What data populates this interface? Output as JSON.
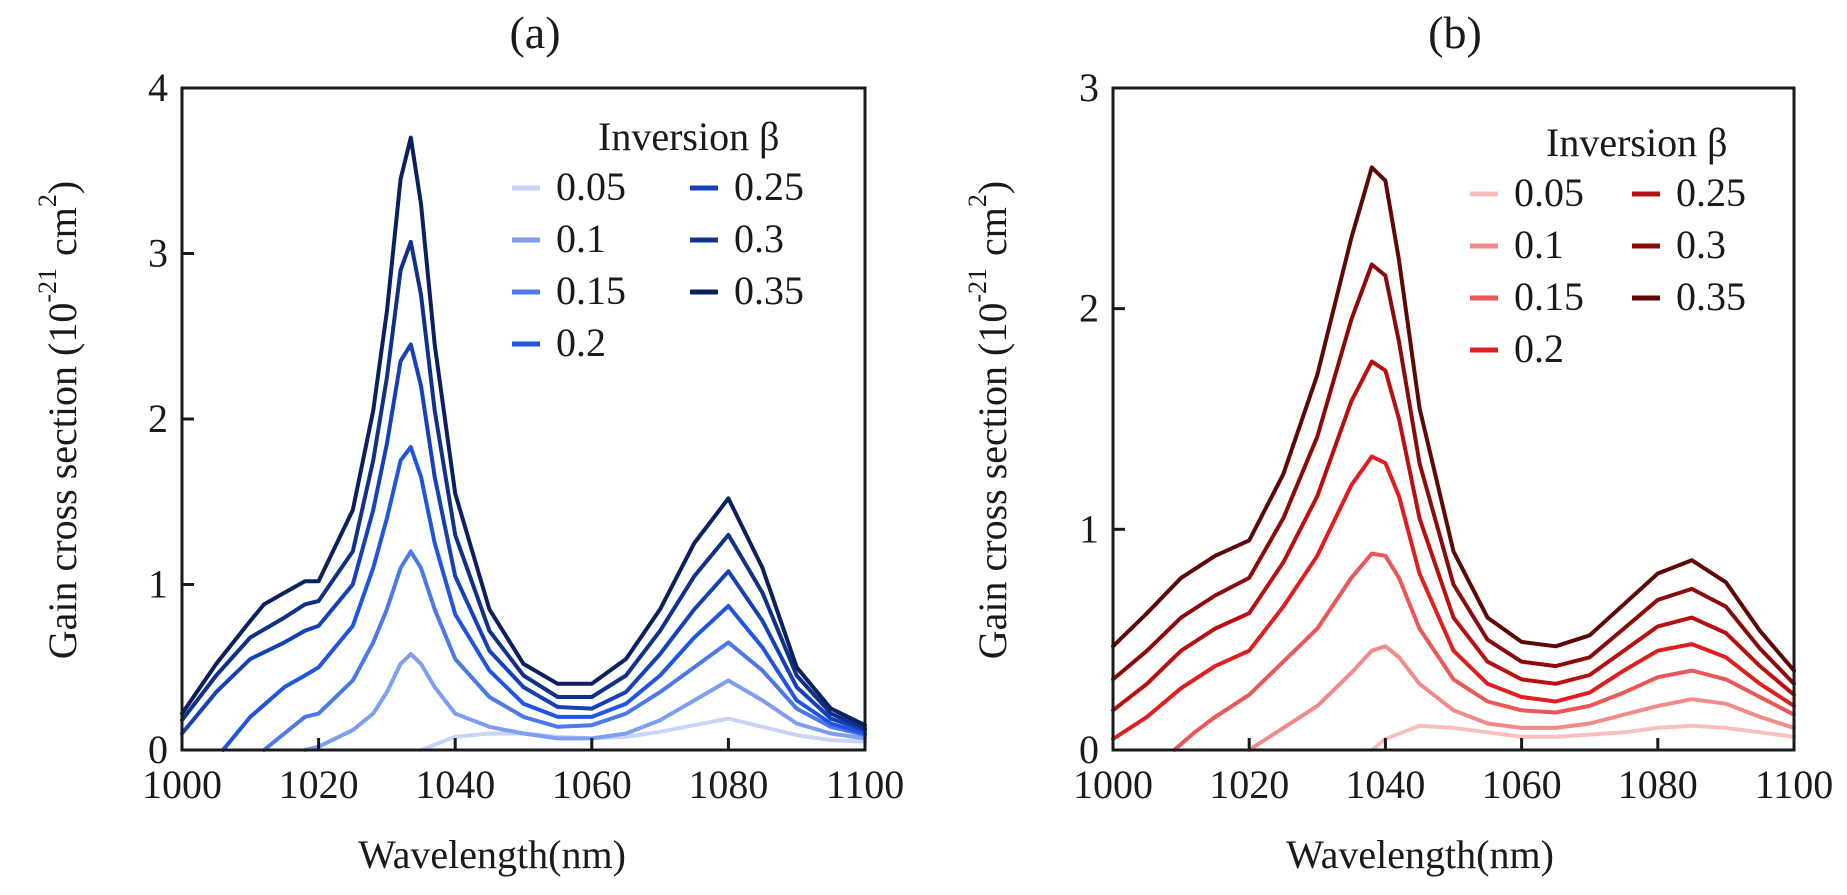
{
  "chart_data": [
    {
      "type": "line",
      "title": "(a)",
      "xlabel": "Wavelength(nm)",
      "ylabel": "Gain cross section (10",
      "ylabel_exp": "-21",
      "ylabel_unit": "cm",
      "ylabel_unit_exp": "2",
      "ylabel_close": ")",
      "xlim": [
        1000,
        1100
      ],
      "ylim": [
        0,
        4
      ],
      "xticks": [
        "1000",
        "1020",
        "1040",
        "1060",
        "1080",
        "1100"
      ],
      "yticks": [
        "0",
        "1",
        "2",
        "3",
        "4"
      ],
      "legend_title": "Inversion β",
      "legend_position": "top-right",
      "series": [
        {
          "name": "0.05",
          "color": "#c7d4f7",
          "x": [
            1035,
            1040,
            1045,
            1050,
            1055,
            1060,
            1065,
            1070,
            1075,
            1080,
            1085,
            1090,
            1095,
            1100
          ],
          "values": [
            0.0,
            0.08,
            0.1,
            0.1,
            0.08,
            0.07,
            0.08,
            0.11,
            0.15,
            0.19,
            0.14,
            0.09,
            0.06,
            0.05
          ]
        },
        {
          "name": "0.1",
          "color": "#7f9ef0",
          "x": [
            1018,
            1020,
            1025,
            1028,
            1030,
            1032,
            1033.5,
            1035,
            1037,
            1040,
            1045,
            1050,
            1055,
            1060,
            1065,
            1070,
            1075,
            1080,
            1085,
            1090,
            1095,
            1100
          ],
          "values": [
            0.0,
            0.02,
            0.12,
            0.22,
            0.35,
            0.52,
            0.58,
            0.52,
            0.38,
            0.22,
            0.14,
            0.1,
            0.07,
            0.07,
            0.1,
            0.18,
            0.3,
            0.42,
            0.3,
            0.16,
            0.1,
            0.07
          ]
        },
        {
          "name": "0.15",
          "color": "#4c78ea",
          "x": [
            1012,
            1015,
            1018,
            1020,
            1025,
            1028,
            1030,
            1032,
            1033.5,
            1035,
            1037,
            1040,
            1045,
            1050,
            1055,
            1060,
            1065,
            1070,
            1075,
            1080,
            1085,
            1090,
            1095,
            1100
          ],
          "values": [
            0.0,
            0.1,
            0.2,
            0.22,
            0.42,
            0.65,
            0.85,
            1.1,
            1.2,
            1.1,
            0.85,
            0.55,
            0.32,
            0.2,
            0.14,
            0.15,
            0.22,
            0.35,
            0.5,
            0.65,
            0.48,
            0.25,
            0.14,
            0.09
          ]
        },
        {
          "name": "0.2",
          "color": "#1f55e0",
          "x": [
            1006,
            1010,
            1015,
            1018,
            1020,
            1025,
            1028,
            1030,
            1032,
            1033.5,
            1035,
            1037,
            1040,
            1045,
            1050,
            1055,
            1060,
            1065,
            1070,
            1075,
            1080,
            1085,
            1090,
            1095,
            1100
          ],
          "values": [
            0.0,
            0.2,
            0.38,
            0.45,
            0.5,
            0.75,
            1.1,
            1.4,
            1.75,
            1.83,
            1.65,
            1.25,
            0.82,
            0.48,
            0.28,
            0.2,
            0.2,
            0.28,
            0.45,
            0.68,
            0.87,
            0.62,
            0.3,
            0.16,
            0.1
          ]
        },
        {
          "name": "0.25",
          "color": "#1540b8",
          "x": [
            1000,
            1005,
            1010,
            1015,
            1018,
            1020,
            1025,
            1028,
            1030,
            1032,
            1033.5,
            1035,
            1037,
            1040,
            1045,
            1050,
            1055,
            1060,
            1065,
            1070,
            1075,
            1080,
            1085,
            1090,
            1095,
            1100
          ],
          "values": [
            0.1,
            0.35,
            0.55,
            0.65,
            0.72,
            0.75,
            1.0,
            1.45,
            1.85,
            2.35,
            2.45,
            2.2,
            1.65,
            1.05,
            0.6,
            0.38,
            0.26,
            0.25,
            0.35,
            0.58,
            0.85,
            1.08,
            0.78,
            0.38,
            0.19,
            0.12
          ]
        },
        {
          "name": "0.3",
          "color": "#11308a",
          "x": [
            1000,
            1005,
            1010,
            1015,
            1018,
            1020,
            1025,
            1028,
            1030,
            1032,
            1033.5,
            1035,
            1037,
            1040,
            1045,
            1050,
            1055,
            1060,
            1065,
            1070,
            1075,
            1080,
            1085,
            1090,
            1095,
            1100
          ],
          "values": [
            0.18,
            0.45,
            0.68,
            0.8,
            0.88,
            0.9,
            1.2,
            1.75,
            2.25,
            2.9,
            3.07,
            2.75,
            2.05,
            1.3,
            0.72,
            0.45,
            0.32,
            0.32,
            0.45,
            0.72,
            1.05,
            1.3,
            0.95,
            0.45,
            0.22,
            0.13
          ]
        },
        {
          "name": "0.35",
          "color": "#0c1f5e",
          "x": [
            1000,
            1005,
            1010,
            1012,
            1015,
            1018,
            1020,
            1025,
            1028,
            1030,
            1032,
            1033.5,
            1035,
            1037,
            1040,
            1045,
            1050,
            1055,
            1060,
            1065,
            1070,
            1075,
            1080,
            1085,
            1090,
            1095,
            1100
          ],
          "values": [
            0.22,
            0.52,
            0.78,
            0.88,
            0.95,
            1.02,
            1.02,
            1.45,
            2.05,
            2.65,
            3.45,
            3.7,
            3.3,
            2.45,
            1.55,
            0.85,
            0.52,
            0.4,
            0.4,
            0.55,
            0.85,
            1.25,
            1.52,
            1.1,
            0.5,
            0.25,
            0.15
          ]
        }
      ]
    },
    {
      "type": "line",
      "title": "(b)",
      "xlabel": "Wavelength(nm)",
      "ylabel": "Gain cross section (10",
      "ylabel_exp": "-21",
      "ylabel_unit": "cm",
      "ylabel_unit_exp": "2",
      "ylabel_close": ")",
      "xlim": [
        1000,
        1100
      ],
      "ylim": [
        0,
        3
      ],
      "xticks": [
        "1000",
        "1020",
        "1040",
        "1060",
        "1080",
        "1100"
      ],
      "yticks": [
        "0",
        "1",
        "2",
        "3"
      ],
      "legend_title": "Inversion β",
      "legend_position": "top-right",
      "series": [
        {
          "name": "0.05",
          "color": "#f7c0c0",
          "x": [
            1038,
            1040,
            1045,
            1050,
            1055,
            1060,
            1065,
            1070,
            1075,
            1080,
            1085,
            1090,
            1095,
            1100
          ],
          "values": [
            0.0,
            0.05,
            0.11,
            0.1,
            0.08,
            0.06,
            0.06,
            0.07,
            0.08,
            0.1,
            0.11,
            0.1,
            0.08,
            0.06
          ]
        },
        {
          "name": "0.1",
          "color": "#f28a8a",
          "x": [
            1020,
            1025,
            1030,
            1035,
            1038,
            1040,
            1042,
            1045,
            1050,
            1055,
            1060,
            1065,
            1070,
            1075,
            1080,
            1085,
            1090,
            1095,
            1100
          ],
          "values": [
            0.0,
            0.1,
            0.2,
            0.35,
            0.45,
            0.47,
            0.42,
            0.3,
            0.18,
            0.12,
            0.1,
            0.1,
            0.12,
            0.16,
            0.2,
            0.23,
            0.21,
            0.15,
            0.1
          ]
        },
        {
          "name": "0.15",
          "color": "#ec5656",
          "x": [
            1009,
            1012,
            1015,
            1020,
            1025,
            1030,
            1035,
            1038,
            1040,
            1042,
            1045,
            1050,
            1055,
            1060,
            1065,
            1070,
            1075,
            1080,
            1085,
            1090,
            1095,
            1100
          ],
          "values": [
            0.0,
            0.08,
            0.15,
            0.25,
            0.4,
            0.55,
            0.78,
            0.89,
            0.88,
            0.78,
            0.55,
            0.32,
            0.22,
            0.18,
            0.17,
            0.2,
            0.26,
            0.33,
            0.36,
            0.32,
            0.24,
            0.16
          ]
        },
        {
          "name": "0.2",
          "color": "#e01e1e",
          "x": [
            1000,
            1005,
            1010,
            1015,
            1020,
            1025,
            1030,
            1035,
            1038,
            1040,
            1042,
            1045,
            1050,
            1055,
            1060,
            1065,
            1070,
            1075,
            1080,
            1085,
            1090,
            1095,
            1100
          ],
          "values": [
            0.05,
            0.15,
            0.28,
            0.38,
            0.45,
            0.65,
            0.88,
            1.2,
            1.33,
            1.3,
            1.15,
            0.8,
            0.45,
            0.3,
            0.24,
            0.22,
            0.26,
            0.36,
            0.45,
            0.48,
            0.42,
            0.3,
            0.2
          ]
        },
        {
          "name": "0.25",
          "color": "#b80f0f",
          "x": [
            1000,
            1005,
            1010,
            1015,
            1020,
            1025,
            1030,
            1035,
            1038,
            1040,
            1042,
            1045,
            1050,
            1055,
            1060,
            1065,
            1070,
            1075,
            1080,
            1085,
            1090,
            1095,
            1100
          ],
          "values": [
            0.18,
            0.3,
            0.45,
            0.55,
            0.62,
            0.85,
            1.15,
            1.58,
            1.76,
            1.72,
            1.5,
            1.05,
            0.6,
            0.4,
            0.32,
            0.3,
            0.34,
            0.45,
            0.56,
            0.6,
            0.53,
            0.38,
            0.25
          ]
        },
        {
          "name": "0.3",
          "color": "#8c0a0a",
          "x": [
            1000,
            1005,
            1010,
            1015,
            1020,
            1025,
            1030,
            1035,
            1038,
            1040,
            1042,
            1045,
            1050,
            1055,
            1060,
            1065,
            1070,
            1075,
            1080,
            1085,
            1090,
            1095,
            1100
          ],
          "values": [
            0.32,
            0.45,
            0.6,
            0.7,
            0.78,
            1.05,
            1.42,
            1.95,
            2.2,
            2.15,
            1.85,
            1.3,
            0.75,
            0.5,
            0.4,
            0.38,
            0.42,
            0.55,
            0.68,
            0.73,
            0.65,
            0.46,
            0.3
          ]
        },
        {
          "name": "0.35",
          "color": "#5e0707",
          "x": [
            1000,
            1005,
            1010,
            1015,
            1020,
            1025,
            1030,
            1035,
            1038,
            1040,
            1042,
            1045,
            1050,
            1055,
            1060,
            1065,
            1070,
            1075,
            1080,
            1085,
            1090,
            1095,
            1100
          ],
          "values": [
            0.47,
            0.62,
            0.78,
            0.88,
            0.95,
            1.25,
            1.7,
            2.32,
            2.64,
            2.58,
            2.22,
            1.55,
            0.9,
            0.6,
            0.49,
            0.47,
            0.52,
            0.66,
            0.8,
            0.86,
            0.76,
            0.54,
            0.36
          ]
        }
      ]
    }
  ]
}
